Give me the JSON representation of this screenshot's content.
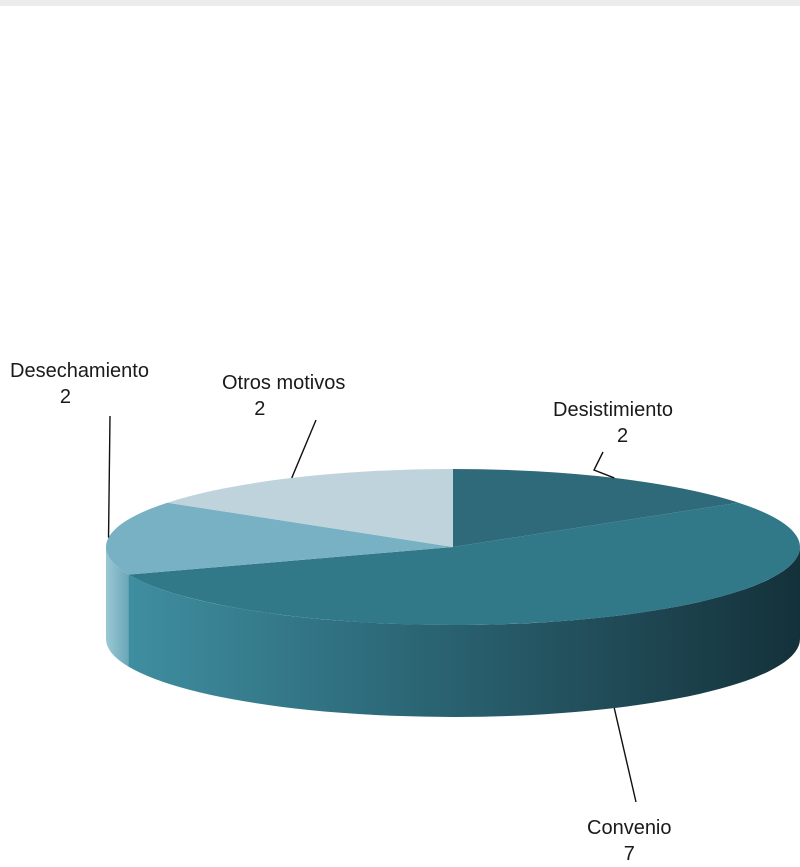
{
  "chart_data": {
    "type": "pie",
    "style": "3d",
    "title": "",
    "slices": [
      {
        "label": "Desistimiento",
        "value": 2,
        "color": "#2f6a7a"
      },
      {
        "label": "Convenio",
        "value": 7,
        "color": "#317889"
      },
      {
        "label": "Desechamiento",
        "value": 2,
        "color": "#77b1c3"
      },
      {
        "label": "Otros motivos",
        "value": 2,
        "color": "#bfd3dc"
      }
    ],
    "legend": "none",
    "data_labels": "label-and-value"
  }
}
